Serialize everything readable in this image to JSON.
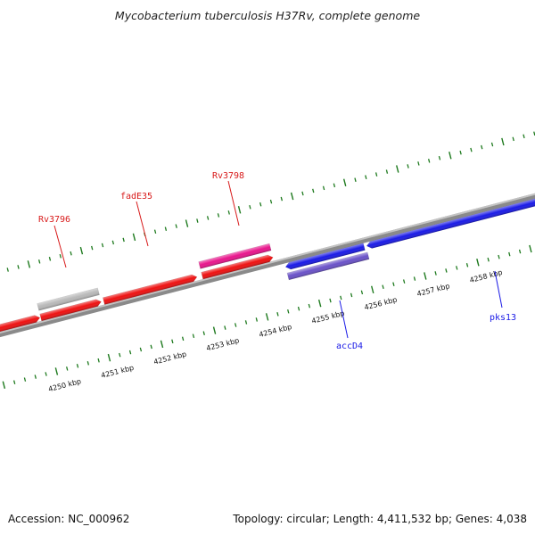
{
  "title": "Mycobacterium tuberculosis H37Rv, complete genome",
  "footer": {
    "accession": "Accession: NC_000962",
    "stats": "Topology: circular; Length: 4,411,532 bp; Genes: 4,038"
  },
  "colors": {
    "background": "#ffffff",
    "backbone": "#8a8a8a",
    "tick": "#1e7a1e",
    "forward_gene": "#ee1111",
    "reverse_gene": "#1a1ae6",
    "forward_label": "#d81b1b",
    "reverse_label": "#1a1ae6"
  },
  "scale": {
    "start_kbp": 4249.6,
    "end_kbp": 4259.2,
    "labels": [
      "4250 kbp",
      "4251 kbp",
      "4252 kbp",
      "4253 kbp",
      "4254 kbp",
      "4255 kbp",
      "4256 kbp",
      "4257 kbp",
      "4258 kbp"
    ]
  },
  "gene_labels": [
    {
      "text": "Rv3796",
      "strand": "forward"
    },
    {
      "text": "fadE35",
      "strand": "forward"
    },
    {
      "text": "Rv3798",
      "strand": "forward"
    },
    {
      "text": "accD4",
      "strand": "reverse"
    },
    {
      "text": "pks13",
      "strand": "reverse"
    }
  ],
  "features": [
    {
      "name": "forward-gene",
      "track": "forward-cds",
      "color": "#ee1111",
      "direction": "right"
    },
    {
      "name": "forward-gene",
      "track": "forward-cds",
      "color": "#ee1111",
      "direction": "right"
    },
    {
      "name": "forward-gene",
      "track": "forward-cds",
      "color": "#ee1111",
      "direction": "right"
    },
    {
      "name": "forward-gene",
      "track": "forward-cds",
      "color": "#ee1111",
      "direction": "right"
    },
    {
      "name": "forward-feature-gray",
      "track": "forward-outer",
      "color": "#b8b8b8",
      "direction": "none"
    },
    {
      "name": "forward-feature-pink",
      "track": "forward-outer",
      "color": "#e8158c",
      "direction": "none"
    },
    {
      "name": "reverse-gene",
      "track": "reverse-cds",
      "color": "#1a1ae6",
      "direction": "left"
    },
    {
      "name": "reverse-gene",
      "track": "reverse-cds",
      "color": "#1a1ae6",
      "direction": "left"
    },
    {
      "name": "reverse-feature-purple",
      "track": "reverse-inner",
      "color": "#6a52c8",
      "direction": "none"
    }
  ]
}
